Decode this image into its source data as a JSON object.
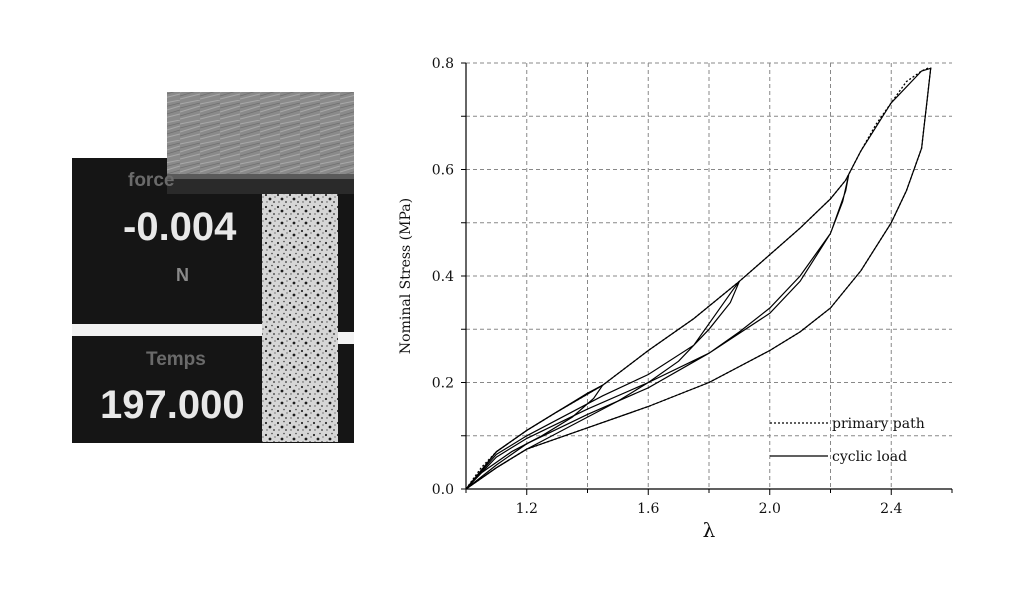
{
  "photo": {
    "force_label": "force",
    "force_value": "-0.004",
    "force_unit": "N",
    "time_label": "Temps",
    "time_value": "197.000"
  },
  "chart_data": {
    "type": "line",
    "xlabel": "λ",
    "ylabel": "Nominal Stress (MPa)",
    "xlim": [
      1.0,
      2.6
    ],
    "ylim": [
      0.0,
      0.8
    ],
    "xticks": [
      1.2,
      1.6,
      2.0,
      2.4
    ],
    "xtick_labels": [
      "1.2",
      "1.6",
      "2.0",
      "2.4"
    ],
    "yticks": [
      0.0,
      0.2,
      0.4,
      0.6,
      0.8
    ],
    "ytick_labels": [
      "0.0",
      "0.2",
      "0.4",
      "0.6",
      "0.8"
    ],
    "grid": true,
    "legend_position": "bottom-right",
    "series": [
      {
        "name": "primary path",
        "style": "dotted",
        "x": [
          1.0,
          1.05,
          1.1,
          1.2,
          1.3,
          1.45,
          1.6,
          1.75,
          1.9,
          2.0,
          2.1,
          2.2,
          2.25,
          2.3,
          2.35,
          2.4,
          2.45,
          2.5,
          2.52,
          2.53,
          2.52,
          2.5,
          2.45,
          2.4,
          2.3,
          2.2,
          2.1,
          2.0,
          1.9,
          1.8,
          1.6,
          1.4,
          1.2,
          1.1,
          1.0
        ],
        "y": [
          0.0,
          0.04,
          0.07,
          0.11,
          0.145,
          0.195,
          0.26,
          0.32,
          0.39,
          0.44,
          0.49,
          0.545,
          0.58,
          0.635,
          0.685,
          0.725,
          0.765,
          0.785,
          0.79,
          0.79,
          0.74,
          0.64,
          0.56,
          0.5,
          0.41,
          0.34,
          0.295,
          0.26,
          0.23,
          0.2,
          0.155,
          0.115,
          0.075,
          0.04,
          0.0
        ]
      },
      {
        "name": "cyclic load",
        "style": "solid",
        "cycles": [
          {
            "x": [
              1.0,
              1.1,
              1.2,
              1.3,
              1.45,
              1.6,
              1.75,
              1.9,
              2.0,
              2.1,
              2.2,
              2.25,
              2.3,
              2.4,
              2.5,
              2.53,
              2.52,
              2.5,
              2.45,
              2.4,
              2.3,
              2.2,
              2.1,
              2.0,
              1.9,
              1.8,
              1.6,
              1.4,
              1.2,
              1.1,
              1.0
            ],
            "y": [
              0.0,
              0.07,
              0.11,
              0.145,
              0.195,
              0.26,
              0.32,
              0.39,
              0.44,
              0.49,
              0.545,
              0.58,
              0.635,
              0.725,
              0.785,
              0.79,
              0.74,
              0.64,
              0.56,
              0.5,
              0.41,
              0.34,
              0.295,
              0.26,
              0.23,
              0.2,
              0.155,
              0.115,
              0.075,
              0.04,
              0.0
            ]
          },
          {
            "x": [
              1.0,
              1.1,
              1.2,
              1.3,
              1.45,
              1.6,
              1.75,
              1.88,
              1.9,
              1.87,
              1.8,
              1.7,
              1.6,
              1.5,
              1.4,
              1.3,
              1.2,
              1.1,
              1.0
            ],
            "y": [
              0.0,
              0.065,
              0.1,
              0.13,
              0.175,
              0.215,
              0.27,
              0.375,
              0.39,
              0.35,
              0.3,
              0.24,
              0.2,
              0.165,
              0.135,
              0.105,
              0.075,
              0.04,
              0.0
            ]
          },
          {
            "x": [
              1.0,
              1.1,
              1.2,
              1.4,
              1.6,
              1.8,
              2.0,
              2.1,
              2.2,
              2.25,
              2.26,
              2.24,
              2.2,
              2.1,
              2.0,
              1.9,
              1.8,
              1.6,
              1.4,
              1.2,
              1.1,
              1.0
            ],
            "y": [
              0.0,
              0.06,
              0.095,
              0.15,
              0.2,
              0.255,
              0.33,
              0.39,
              0.48,
              0.56,
              0.59,
              0.54,
              0.48,
              0.4,
              0.34,
              0.295,
              0.255,
              0.19,
              0.14,
              0.085,
              0.045,
              0.0
            ]
          },
          {
            "x": [
              1.0,
              1.1,
              1.2,
              1.3,
              1.4,
              1.45,
              1.42,
              1.35,
              1.25,
              1.15,
              1.05,
              1.0
            ],
            "y": [
              0.0,
              0.07,
              0.11,
              0.145,
              0.18,
              0.195,
              0.17,
              0.135,
              0.1,
              0.07,
              0.03,
              0.0
            ]
          }
        ]
      }
    ]
  }
}
